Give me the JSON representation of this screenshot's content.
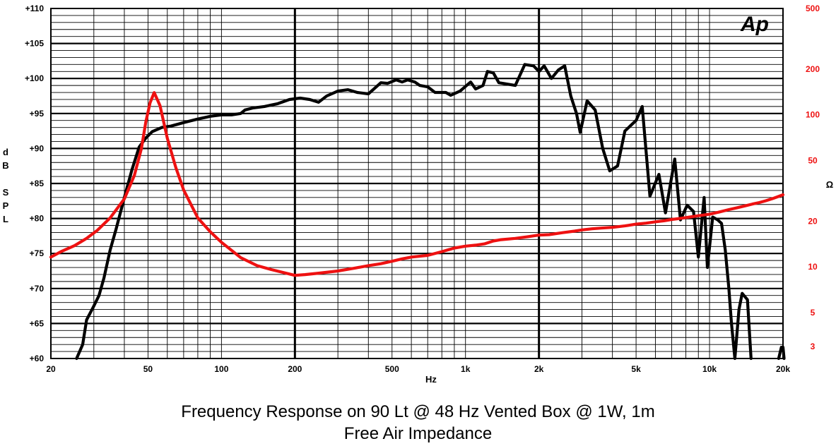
{
  "logo_text": "Ap",
  "caption": {
    "line1": "Frequency Response on 90 Lt @ 48 Hz Vented Box @ 1W, 1m",
    "line2": "Free Air Impedance"
  },
  "colors": {
    "spl": "#000000",
    "impedance": "#ee1111",
    "grid": "#000000"
  },
  "chart_data": {
    "type": "line",
    "x_scale": "log",
    "xlim": [
      20,
      20000
    ],
    "xlabel": "Hz",
    "x_ticks": [
      {
        "value": 20,
        "label": "20"
      },
      {
        "value": 50,
        "label": "50"
      },
      {
        "value": 100,
        "label": "100"
      },
      {
        "value": 200,
        "label": "200"
      },
      {
        "value": 500,
        "label": "500"
      },
      {
        "value": 1000,
        "label": "1k"
      },
      {
        "value": 2000,
        "label": "2k"
      },
      {
        "value": 5000,
        "label": "5k"
      },
      {
        "value": 10000,
        "label": "10k"
      },
      {
        "value": 20000,
        "label": "20k"
      }
    ],
    "y_left": {
      "label": "dB SPL",
      "label_chars": [
        "d",
        "B",
        "",
        "S",
        "P",
        "L"
      ],
      "lim": [
        60,
        110
      ],
      "ticks": [
        {
          "value": 60,
          "label": "+60"
        },
        {
          "value": 65,
          "label": "+65"
        },
        {
          "value": 70,
          "label": "+70"
        },
        {
          "value": 75,
          "label": "+75"
        },
        {
          "value": 80,
          "label": "+80"
        },
        {
          "value": 85,
          "label": "+85"
        },
        {
          "value": 90,
          "label": "+90"
        },
        {
          "value": 95,
          "label": "+95"
        },
        {
          "value": 100,
          "label": "+100"
        },
        {
          "value": 105,
          "label": "+105"
        },
        {
          "value": 110,
          "label": "+110"
        }
      ]
    },
    "y_right": {
      "label": "Ω",
      "scale": "log",
      "lim": [
        2.5,
        500
      ],
      "ticks": [
        {
          "value": 3,
          "label": "3"
        },
        {
          "value": 5,
          "label": "5"
        },
        {
          "value": 10,
          "label": "10"
        },
        {
          "value": 20,
          "label": "20"
        },
        {
          "value": 50,
          "label": "50"
        },
        {
          "value": 100,
          "label": "100"
        },
        {
          "value": 200,
          "label": "200"
        },
        {
          "value": 500,
          "label": "500"
        }
      ]
    },
    "grid": true,
    "series": [
      {
        "name": "",
        "axis": "left",
        "color": "#000000",
        "points": [
          [
            25.5,
            60
          ],
          [
            27,
            62
          ],
          [
            28,
            65.5
          ],
          [
            30,
            67.5
          ],
          [
            31.5,
            69
          ],
          [
            33,
            71.5
          ],
          [
            35,
            75.5
          ],
          [
            37,
            78.5
          ],
          [
            40,
            83
          ],
          [
            43,
            87
          ],
          [
            46,
            90.2
          ],
          [
            49,
            91.5
          ],
          [
            52,
            92.4
          ],
          [
            57,
            93
          ],
          [
            62,
            93.2
          ],
          [
            70,
            93.7
          ],
          [
            80,
            94.2
          ],
          [
            90,
            94.6
          ],
          [
            100,
            94.8
          ],
          [
            110,
            94.8
          ],
          [
            120,
            95
          ],
          [
            125,
            95.5
          ],
          [
            135,
            95.8
          ],
          [
            150,
            96
          ],
          [
            170,
            96.4
          ],
          [
            190,
            97
          ],
          [
            210,
            97.2
          ],
          [
            230,
            97
          ],
          [
            250,
            96.6
          ],
          [
            270,
            97.5
          ],
          [
            300,
            98.2
          ],
          [
            330,
            98.4
          ],
          [
            360,
            98
          ],
          [
            400,
            97.8
          ],
          [
            450,
            99.4
          ],
          [
            480,
            99.3
          ],
          [
            520,
            99.8
          ],
          [
            550,
            99.5
          ],
          [
            580,
            99.8
          ],
          [
            620,
            99.5
          ],
          [
            650,
            99
          ],
          [
            700,
            98.8
          ],
          [
            750,
            98
          ],
          [
            830,
            98
          ],
          [
            870,
            97.6
          ],
          [
            950,
            98.2
          ],
          [
            1050,
            99.5
          ],
          [
            1100,
            98.5
          ],
          [
            1180,
            99
          ],
          [
            1230,
            101
          ],
          [
            1300,
            100.8
          ],
          [
            1370,
            99.4
          ],
          [
            1600,
            99
          ],
          [
            1750,
            102
          ],
          [
            1900,
            101.8
          ],
          [
            2000,
            101
          ],
          [
            2100,
            101.8
          ],
          [
            2250,
            100
          ],
          [
            2400,
            101.2
          ],
          [
            2550,
            101.8
          ],
          [
            2700,
            97.5
          ],
          [
            2850,
            95
          ],
          [
            2950,
            92.3
          ],
          [
            3150,
            96.8
          ],
          [
            3400,
            95.5
          ],
          [
            3650,
            90
          ],
          [
            3900,
            86.8
          ],
          [
            4200,
            87.5
          ],
          [
            4500,
            92.5
          ],
          [
            5000,
            94
          ],
          [
            5300,
            96
          ],
          [
            5700,
            83.2
          ],
          [
            6200,
            86.3
          ],
          [
            6600,
            80.8
          ],
          [
            7200,
            88.5
          ],
          [
            7600,
            79.8
          ],
          [
            8100,
            81.9
          ],
          [
            8600,
            81
          ],
          [
            9000,
            74.5
          ],
          [
            9500,
            83
          ],
          [
            9800,
            73
          ],
          [
            10300,
            80.2
          ],
          [
            10800,
            79.8
          ],
          [
            11200,
            79.3
          ],
          [
            11600,
            75.5
          ],
          [
            12000,
            70
          ],
          [
            12300,
            65
          ],
          [
            12700,
            60
          ],
          [
            13200,
            67
          ],
          [
            13600,
            69.3
          ],
          [
            14300,
            68.4
          ],
          [
            14800,
            60
          ]
        ]
      },
      {
        "name": "",
        "axis": "left",
        "color": "#000000",
        "points": [
          [
            19200,
            60
          ],
          [
            19700,
            61.6
          ],
          [
            20000,
            61.6
          ],
          [
            20200,
            60
          ]
        ]
      },
      {
        "name": "",
        "axis": "right",
        "color": "#ee1111",
        "points": [
          [
            20,
            11.6
          ],
          [
            22,
            12.6
          ],
          [
            25,
            13.8
          ],
          [
            28,
            15.4
          ],
          [
            31,
            17.4
          ],
          [
            35,
            21
          ],
          [
            40,
            28
          ],
          [
            44,
            40
          ],
          [
            47,
            60
          ],
          [
            49,
            90
          ],
          [
            51,
            120
          ],
          [
            53,
            140
          ],
          [
            56,
            115
          ],
          [
            60,
            70
          ],
          [
            65,
            45
          ],
          [
            70,
            32
          ],
          [
            80,
            21
          ],
          [
            90,
            17
          ],
          [
            100,
            14.5
          ],
          [
            120,
            11.5
          ],
          [
            140,
            10.2
          ],
          [
            160,
            9.6
          ],
          [
            200,
            8.8
          ],
          [
            220,
            8.9
          ],
          [
            250,
            9.1
          ],
          [
            300,
            9.4
          ],
          [
            350,
            9.8
          ],
          [
            400,
            10.2
          ],
          [
            450,
            10.5
          ],
          [
            500,
            10.9
          ],
          [
            550,
            11.3
          ],
          [
            600,
            11.6
          ],
          [
            700,
            11.9
          ],
          [
            800,
            12.6
          ],
          [
            900,
            13.3
          ],
          [
            1000,
            13.7
          ],
          [
            1100,
            13.9
          ],
          [
            1200,
            14.2
          ],
          [
            1300,
            14.8
          ],
          [
            1400,
            15.1
          ],
          [
            1600,
            15.4
          ],
          [
            1800,
            15.8
          ],
          [
            2000,
            16.2
          ],
          [
            2200,
            16.3
          ],
          [
            2500,
            16.8
          ],
          [
            2800,
            17.2
          ],
          [
            3000,
            17.5
          ],
          [
            3300,
            17.8
          ],
          [
            3600,
            18
          ],
          [
            4000,
            18.2
          ],
          [
            4500,
            18.6
          ],
          [
            5000,
            19.1
          ],
          [
            5500,
            19.4
          ],
          [
            6000,
            19.8
          ],
          [
            6500,
            20.1
          ],
          [
            7000,
            20.5
          ],
          [
            7500,
            20.8
          ],
          [
            8000,
            21.1
          ],
          [
            8500,
            21.4
          ],
          [
            9000,
            21.7
          ],
          [
            10000,
            22.2
          ],
          [
            11000,
            23
          ],
          [
            12000,
            23.8
          ],
          [
            13000,
            24.5
          ],
          [
            14000,
            25.2
          ],
          [
            15000,
            25.9
          ],
          [
            16000,
            26.5
          ],
          [
            17000,
            27.2
          ],
          [
            18000,
            28
          ],
          [
            19000,
            28.9
          ],
          [
            20000,
            29.8
          ]
        ]
      }
    ]
  }
}
